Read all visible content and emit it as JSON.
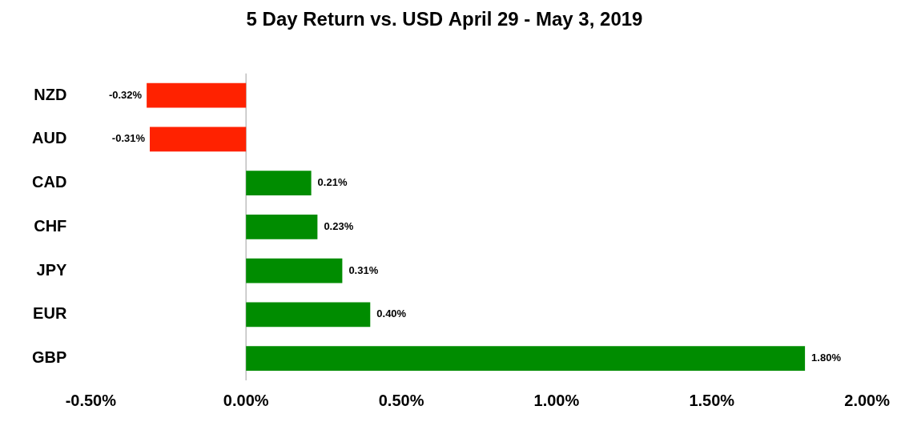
{
  "chart_data": {
    "type": "bar",
    "title": "5 Day Return vs. USD April 29 - May 3, 2019",
    "orientation": "horizontal",
    "categories": [
      "NZD",
      "AUD",
      "CAD",
      "CHF",
      "JPY",
      "EUR",
      "GBP"
    ],
    "values": [
      -0.32,
      -0.31,
      0.21,
      0.23,
      0.31,
      0.4,
      1.8
    ],
    "value_labels": [
      "-0.32%",
      "-0.31%",
      "0.21%",
      "0.23%",
      "0.31%",
      "0.40%",
      "1.80%"
    ],
    "colors": [
      "#ff2200",
      "#ff2200",
      "#008c00",
      "#008c00",
      "#008c00",
      "#008c00",
      "#008c00"
    ],
    "xlim": [
      -0.5,
      2.0
    ],
    "xticks": [
      {
        "value": -0.5,
        "label": "-0.50%"
      },
      {
        "value": 0,
        "label": "0.00%"
      },
      {
        "value": 0.5,
        "label": "0.50%"
      },
      {
        "value": 1.0,
        "label": "1.00%"
      },
      {
        "value": 1.5,
        "label": "1.50%"
      },
      {
        "value": 2.0,
        "label": "2.00%"
      }
    ],
    "grid": false,
    "data_labels": true
  }
}
